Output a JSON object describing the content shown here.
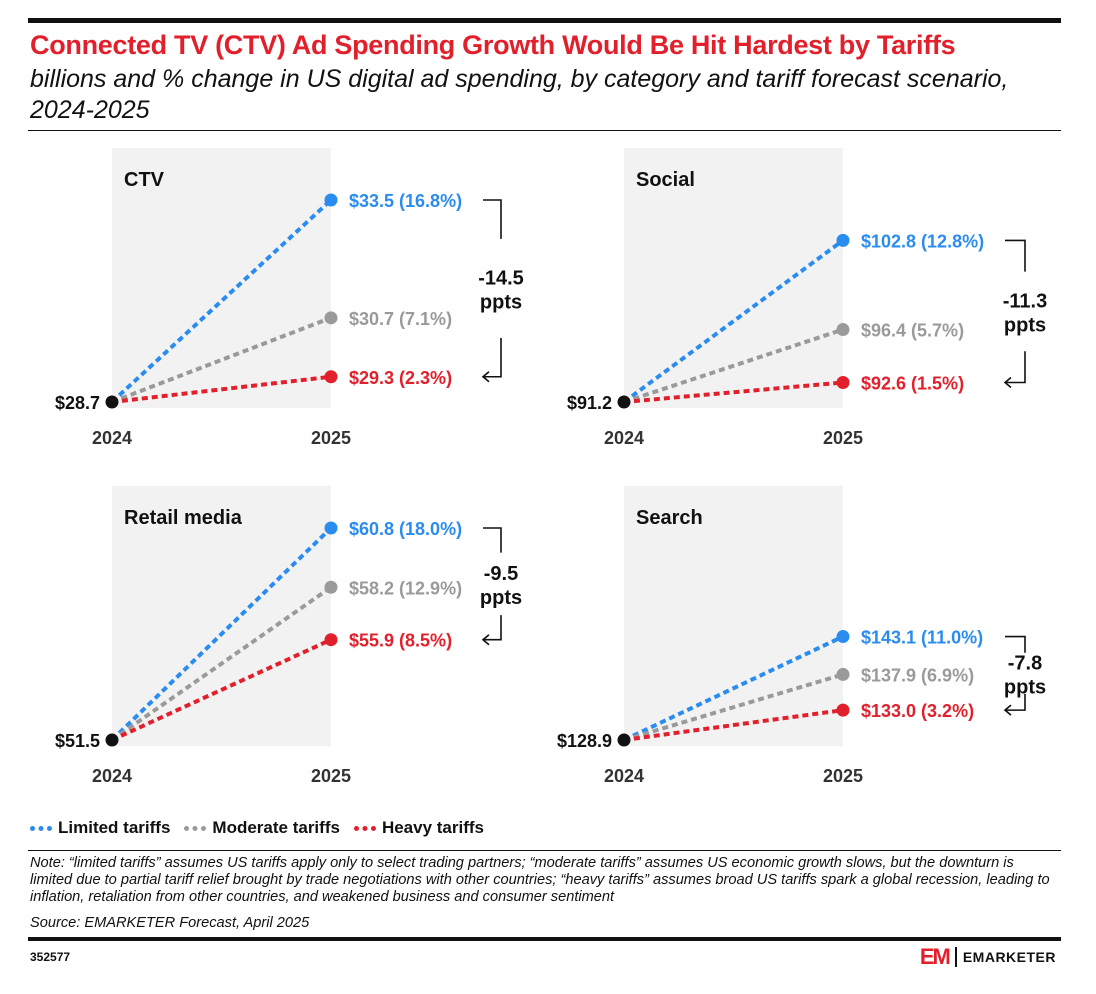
{
  "header": {
    "title": "Connected TV (CTV) Ad Spending Growth Would Be Hit Hardest by Tariffs",
    "subtitle": "billions and % change in US digital ad spending, by category and tariff forecast scenario, 2024-2025"
  },
  "colors": {
    "title": "#e2202c",
    "limited": "#2b8cf0",
    "moderate": "#9a9a9a",
    "heavy": "#e2202c",
    "panel": "#f2f2f2",
    "base": "#111111"
  },
  "chart_data": [
    {
      "type": "line",
      "title": "CTV",
      "x": [
        "2024",
        "2025"
      ],
      "base_label": "$28.7",
      "base_value": 28.7,
      "ylim": [
        28.7,
        33.5
      ],
      "series": [
        {
          "name": "Limited tariffs",
          "values": [
            28.7,
            33.5
          ],
          "label": "$33.5 (16.8%)"
        },
        {
          "name": "Moderate tariffs",
          "values": [
            28.7,
            30.7
          ],
          "label": "$30.7 (7.1%)"
        },
        {
          "name": "Heavy tariffs",
          "values": [
            28.7,
            29.3
          ],
          "label": "$29.3 (2.3%)"
        }
      ],
      "gap": {
        "value": "-14.5",
        "unit": "ppts"
      }
    },
    {
      "type": "line",
      "title": "Social",
      "x": [
        "2024",
        "2025"
      ],
      "base_label": "$91.2",
      "base_value": 91.2,
      "ylim": [
        91.2,
        105.7
      ],
      "series": [
        {
          "name": "Limited tariffs",
          "values": [
            91.2,
            102.8
          ],
          "label": "$102.8 (12.8%)"
        },
        {
          "name": "Moderate tariffs",
          "values": [
            91.2,
            96.4
          ],
          "label": "$96.4 (5.7%)"
        },
        {
          "name": "Heavy tariffs",
          "values": [
            91.2,
            92.6
          ],
          "label": "$92.6 (1.5%)"
        }
      ],
      "gap": {
        "value": "-11.3",
        "unit": "ppts"
      }
    },
    {
      "type": "line",
      "title": "Retail media",
      "x": [
        "2024",
        "2025"
      ],
      "base_label": "$51.5",
      "base_value": 51.5,
      "ylim": [
        51.5,
        60.8
      ],
      "series": [
        {
          "name": "Limited tariffs",
          "values": [
            51.5,
            60.8
          ],
          "label": "$60.8 (18.0%)"
        },
        {
          "name": "Moderate tariffs",
          "values": [
            51.5,
            58.2
          ],
          "label": "$58.2 (12.9%)"
        },
        {
          "name": "Heavy tariffs",
          "values": [
            51.5,
            55.9
          ],
          "label": "$55.9 (8.5%)"
        }
      ],
      "gap": {
        "value": "-9.5",
        "unit": "ppts"
      }
    },
    {
      "type": "line",
      "title": "Search",
      "x": [
        "2024",
        "2025"
      ],
      "base_label": "$128.9",
      "base_value": 128.9,
      "ylim": [
        128.9,
        158.0
      ],
      "series": [
        {
          "name": "Limited tariffs",
          "values": [
            128.9,
            143.1
          ],
          "label": "$143.1 (11.0%)"
        },
        {
          "name": "Moderate tariffs",
          "values": [
            128.9,
            137.9
          ],
          "label": "$137.9 (6.9%)"
        },
        {
          "name": "Heavy tariffs",
          "values": [
            128.9,
            133.0
          ],
          "label": "$133.0 (3.2%)"
        }
      ],
      "gap": {
        "value": "-7.8",
        "unit": "ppts"
      }
    }
  ],
  "legend": [
    {
      "label": "Limited tariffs",
      "color": "#2b8cf0"
    },
    {
      "label": "Moderate tariffs",
      "color": "#9a9a9a"
    },
    {
      "label": "Heavy tariffs",
      "color": "#e2202c"
    }
  ],
  "footer": {
    "note": "Note: “limited tariffs” assumes US tariffs apply only to select trading partners; “moderate tariffs” assumes US economic growth slows, but the downturn is limited due to partial tariff relief brought by trade negotiations with other countries; “heavy tariffs” assumes broad US tariffs spark a global recession, leading to inflation, retaliation from other countries, and weakened business and consumer sentiment",
    "source": "Source: EMARKETER Forecast, April 2025",
    "chart_id": "352577",
    "brand_mark": "EM",
    "brand_name": "EMARKETER"
  }
}
